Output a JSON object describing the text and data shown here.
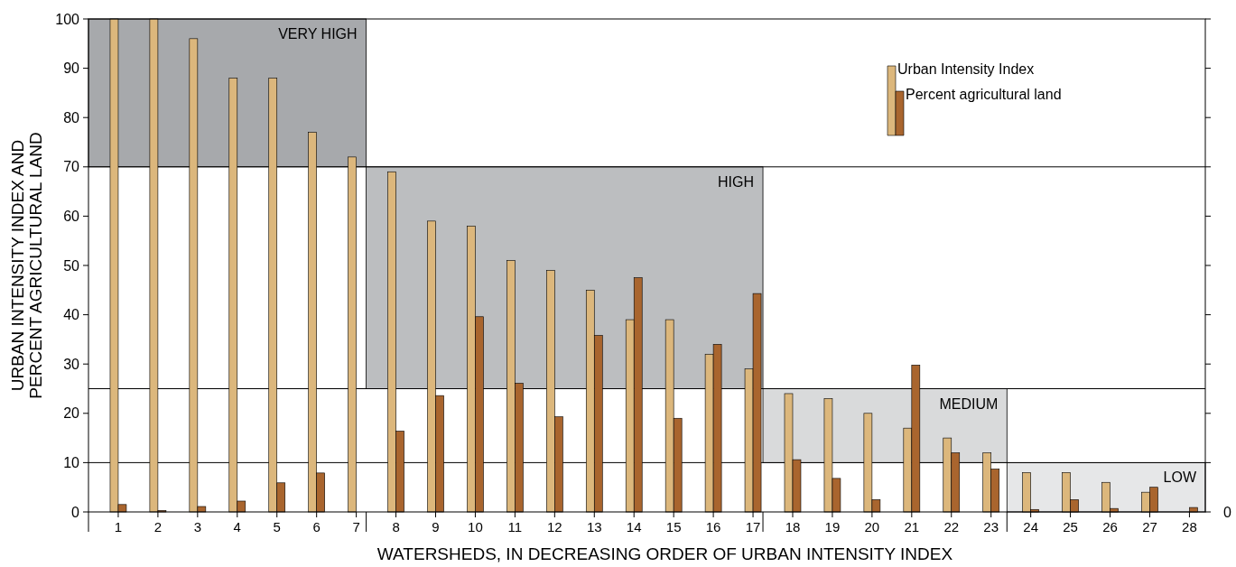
{
  "chart_data": {
    "type": "bar",
    "xlabel": "WATERSHEDS, IN DECREASING ORDER OF URBAN INTENSITY INDEX",
    "ylabel": "URBAN INTENSITY INDEX AND\nPERCENT AGRICULTURAL LAND",
    "x": [
      1,
      2,
      3,
      4,
      5,
      6,
      7,
      8,
      9,
      10,
      11,
      12,
      13,
      14,
      15,
      16,
      17,
      18,
      19,
      20,
      21,
      22,
      23,
      24,
      25,
      26,
      27,
      28
    ],
    "xlim": [
      0.25,
      28.4
    ],
    "xticks": [
      1,
      2,
      3,
      4,
      5,
      6,
      7,
      8,
      9,
      10,
      11,
      12,
      13,
      14,
      15,
      16,
      17,
      18,
      19,
      20,
      21,
      22,
      23,
      24,
      25,
      26,
      27,
      28
    ],
    "ylim": [
      0,
      100
    ],
    "yticks": [
      0,
      10,
      20,
      30,
      40,
      50,
      60,
      70,
      80,
      90,
      100
    ],
    "series": [
      {
        "name": "Urban Intensity Index",
        "color": "#dcb77c",
        "values": [
          100,
          100,
          96,
          88,
          88,
          77,
          72,
          69,
          59,
          58,
          51,
          49,
          45,
          39,
          39,
          32,
          29,
          24,
          23,
          20,
          17,
          15,
          12,
          8,
          8,
          6,
          4,
          null
        ]
      },
      {
        "name": "Percent agricultural land",
        "color": "#a9652e",
        "values": [
          1.5,
          0.3,
          1.1,
          2.2,
          5.9,
          7.9,
          null,
          16.4,
          23.6,
          39.6,
          26.1,
          19.3,
          35.8,
          47.5,
          19,
          34,
          44.3,
          10.6,
          6.8,
          2.5,
          29.8,
          12,
          8.7,
          0.5,
          2.5,
          0.7,
          5,
          0.9
        ]
      }
    ],
    "bands": [
      {
        "axis": "x",
        "from": 0.25,
        "to": 7.25,
        "label": "VERY HIGH",
        "color": "#a7a9ac"
      },
      {
        "axis": "x",
        "from": 7.25,
        "to": 17.25,
        "label": "HIGH",
        "color": "#bcbec0"
      },
      {
        "axis": "x",
        "from": 17.25,
        "to": 23.4,
        "label": "MEDIUM",
        "color": "#d9dadb"
      },
      {
        "axis": "x",
        "from": 23.4,
        "to": 28.4,
        "label": "LOW",
        "color": "#e6e7e8"
      }
    ],
    "ref_lines": [
      {
        "axis": "y",
        "value": 70
      },
      {
        "axis": "y",
        "value": 25
      },
      {
        "axis": "y",
        "value": 10
      }
    ],
    "annotations": [
      "0"
    ],
    "legend": "top right"
  }
}
